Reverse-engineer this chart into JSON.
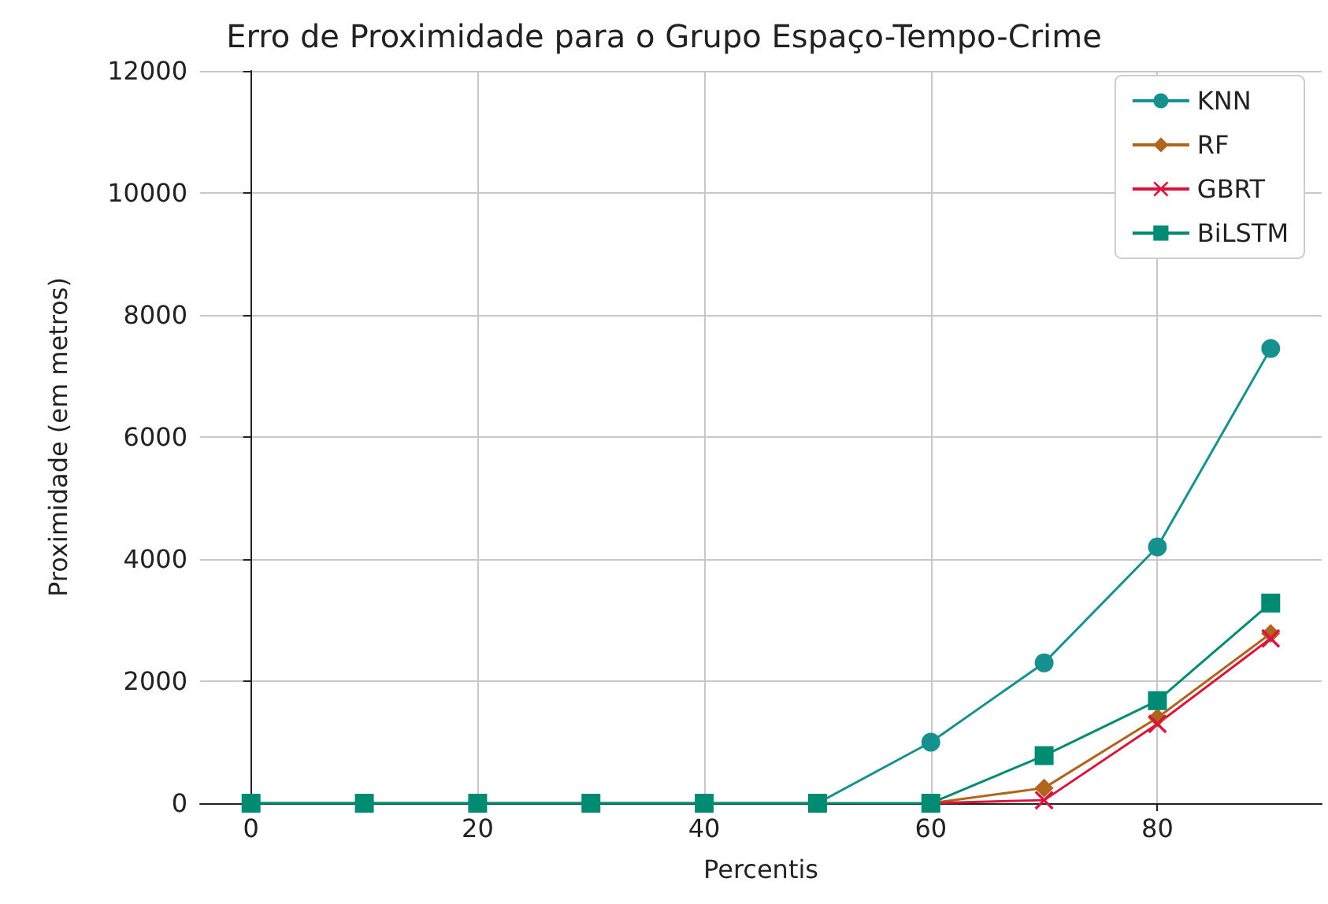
{
  "chart_data": {
    "type": "line",
    "title": "Erro de Proximidade para o Grupo Espaço-Tempo-Crime",
    "xlabel": "Percentis",
    "ylabel": "Proximidade (em metros)",
    "x": [
      0,
      10,
      20,
      30,
      40,
      50,
      60,
      70,
      80,
      90
    ],
    "series": [
      {
        "name": "KNN",
        "color": "#17918f",
        "marker": "circle",
        "values": [
          0,
          0,
          0,
          0,
          0,
          0,
          1000,
          2300,
          4200,
          7450
        ]
      },
      {
        "name": "RF",
        "color": "#b0651c",
        "marker": "diamond",
        "values": [
          null,
          null,
          null,
          null,
          null,
          null,
          0,
          250,
          1400,
          2780
        ]
      },
      {
        "name": "GBRT",
        "color": "#dc143c",
        "marker": "cross",
        "values": [
          null,
          null,
          null,
          null,
          null,
          null,
          0,
          50,
          1300,
          2700
        ]
      },
      {
        "name": "BiLSTM",
        "color": "#008b72",
        "marker": "square",
        "values": [
          0,
          0,
          0,
          0,
          0,
          0,
          0,
          780,
          1680,
          3280
        ]
      }
    ],
    "xlim": [
      -4.5,
      94.5
    ],
    "xticks": [
      0,
      20,
      40,
      60,
      80
    ],
    "ylim": [
      0,
      12000
    ],
    "yticks": [
      0,
      2000,
      4000,
      6000,
      8000,
      10000,
      12000
    ],
    "grid": true,
    "legend": "top right"
  }
}
